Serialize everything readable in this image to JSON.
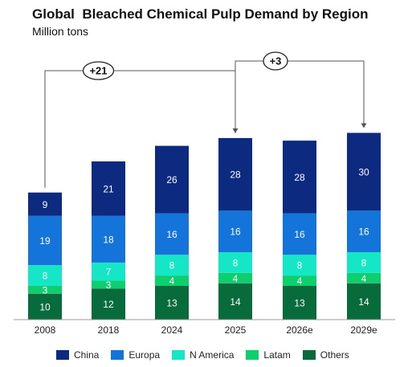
{
  "chart_data": {
    "type": "bar",
    "stacked": true,
    "title": "Global  Bleached Chemical Pulp Demand by Region",
    "subtitle": "Million tons",
    "categories": [
      "2008",
      "2018",
      "2024",
      "2025",
      "2026e",
      "2029e"
    ],
    "series": [
      {
        "name": "Others",
        "color": "#076b3c",
        "values": [
          10,
          12,
          13,
          14,
          13,
          14
        ]
      },
      {
        "name": "Latam",
        "color": "#0fce6e",
        "values": [
          3,
          3,
          4,
          4,
          4,
          4
        ]
      },
      {
        "name": "N America",
        "color": "#14e6c6",
        "values": [
          8,
          7,
          8,
          8,
          8,
          8
        ]
      },
      {
        "name": "Europa",
        "color": "#1474d9",
        "values": [
          19,
          18,
          16,
          16,
          16,
          16
        ]
      },
      {
        "name": "China",
        "color": "#0c2a7f",
        "values": [
          9,
          21,
          26,
          28,
          28,
          30
        ]
      }
    ],
    "legend_order": [
      "China",
      "Europa",
      "N America",
      "Latam",
      "Others"
    ],
    "legend_position": "bottom",
    "grid": false,
    "annotations": [
      {
        "label": "+21",
        "from": "2008",
        "to": "2025"
      },
      {
        "label": "+3",
        "from": "2025",
        "to": "2029e"
      }
    ]
  }
}
